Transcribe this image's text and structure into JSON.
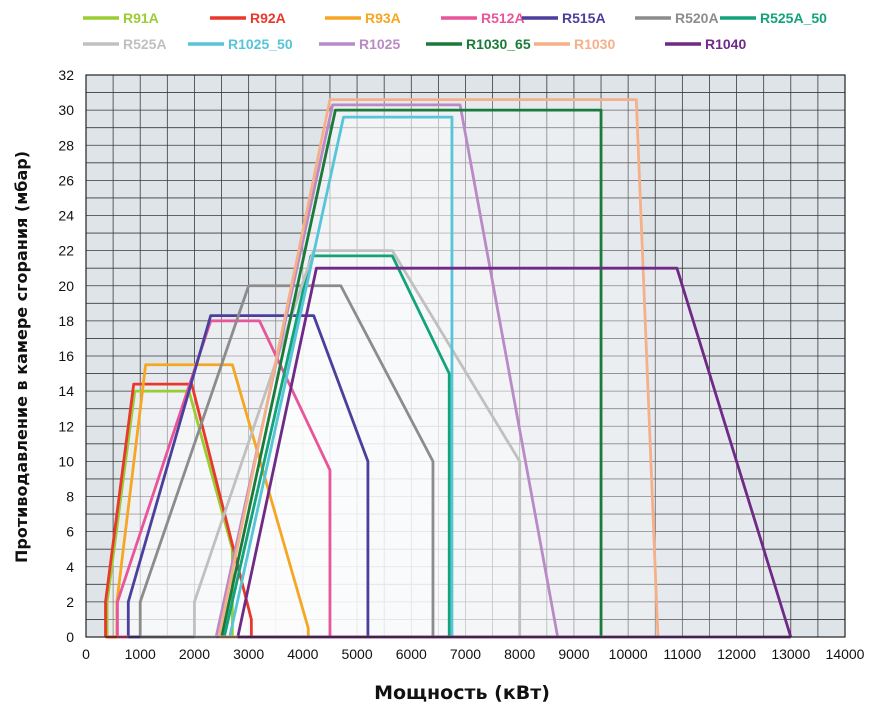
{
  "chart_data": {
    "type": "line",
    "xlabel": "Мощность (кВт)",
    "ylabel": "Противодавление в камере сгорания (мбар)",
    "xlim": [
      0,
      14000
    ],
    "ylim": [
      0,
      32
    ],
    "xticks": [
      0,
      1000,
      2000,
      3000,
      4000,
      5000,
      6000,
      7000,
      8000,
      9000,
      10000,
      11000,
      12000,
      13000,
      14000
    ],
    "yticks": [
      0,
      2,
      4,
      6,
      8,
      10,
      12,
      14,
      16,
      18,
      20,
      22,
      24,
      26,
      28,
      30,
      32
    ],
    "grid": true,
    "legend_position": "top",
    "series": [
      {
        "name": "R91A",
        "color": "#9acd32",
        "x": [
          390,
          390,
          900,
          1900,
          2700,
          2700
        ],
        "y": [
          0,
          2,
          14,
          14,
          5,
          0
        ]
      },
      {
        "name": "R92A",
        "color": "#e8382d",
        "x": [
          360,
          360,
          880,
          1950,
          3050,
          3050
        ],
        "y": [
          0,
          2,
          14.4,
          14.4,
          1,
          0
        ]
      },
      {
        "name": "R93A",
        "color": "#f5a623",
        "x": [
          570,
          570,
          1100,
          2700,
          4100,
          4100
        ],
        "y": [
          0,
          2,
          15.5,
          15.5,
          0.5,
          0
        ]
      },
      {
        "name": "R512A",
        "color": "#e8559a",
        "x": [
          580,
          580,
          2300,
          3200,
          4500,
          4500
        ],
        "y": [
          0,
          2,
          18,
          18,
          9.5,
          0
        ]
      },
      {
        "name": "R515A",
        "color": "#4b3f9e",
        "x": [
          780,
          780,
          2300,
          4200,
          5200,
          5200
        ],
        "y": [
          0,
          2,
          18.3,
          18.3,
          10,
          0
        ]
      },
      {
        "name": "R520A",
        "color": "#8c8c8c",
        "x": [
          1000,
          1000,
          3000,
          4700,
          6400,
          6400
        ],
        "y": [
          0,
          2,
          20,
          20,
          10,
          0
        ]
      },
      {
        "name": "R525A_50",
        "color": "#12a37a",
        "x": [
          2550,
          4150,
          5650,
          6700,
          6700
        ],
        "y": [
          0,
          21.7,
          21.7,
          15,
          0
        ]
      },
      {
        "name": "R525A",
        "color": "#c0c0c0",
        "x": [
          2000,
          2000,
          4200,
          5650,
          8000,
          8000
        ],
        "y": [
          0,
          2,
          22,
          22,
          10,
          0
        ]
      },
      {
        "name": "R1025_50",
        "color": "#56c5d8",
        "x": [
          2650,
          4750,
          6750,
          6750
        ],
        "y": [
          0,
          29.6,
          29.6,
          0
        ]
      },
      {
        "name": "R1025",
        "color": "#b98ac6",
        "x": [
          2400,
          4550,
          6900,
          8700
        ],
        "y": [
          0,
          30.3,
          30.3,
          0
        ]
      },
      {
        "name": "R1030_65",
        "color": "#1a7a3a",
        "x": [
          2500,
          4600,
          9500,
          9500
        ],
        "y": [
          0,
          30,
          30,
          0
        ]
      },
      {
        "name": "R1030",
        "color": "#f5b08a",
        "x": [
          2450,
          4500,
          10150,
          10550
        ],
        "y": [
          0,
          30.6,
          30.6,
          0
        ]
      },
      {
        "name": "R1040",
        "color": "#6e2a85",
        "x": [
          2800,
          4250,
          10900,
          13000
        ],
        "y": [
          0,
          21,
          21,
          0
        ]
      }
    ]
  }
}
